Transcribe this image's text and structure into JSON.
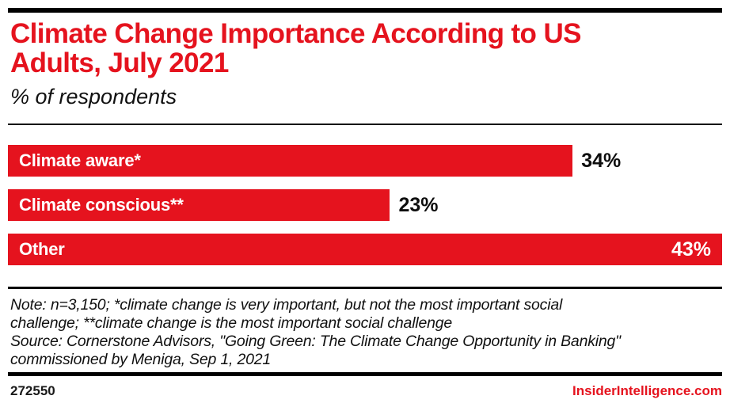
{
  "accent_color": "#E5131E",
  "header": {
    "title_line1": "Climate Change Importance According to US",
    "title_line2": "Adults, July 2021",
    "subtitle": "% of respondents"
  },
  "chart_data": {
    "type": "bar",
    "orientation": "horizontal",
    "title": "Climate Change Importance According to US Adults, July 2021",
    "subtitle": "% of respondents",
    "unit": "%",
    "categories": [
      "Climate aware*",
      "Climate conscious**",
      "Other"
    ],
    "values": [
      34,
      23,
      43
    ],
    "max_scale": 43,
    "bar_color": "#E5131E",
    "grid": "off",
    "bars": [
      {
        "label": "Climate aware*",
        "value": 34,
        "value_label": "34%",
        "value_inside": false
      },
      {
        "label": "Climate conscious**",
        "value": 23,
        "value_label": "23%",
        "value_inside": false
      },
      {
        "label": "Other",
        "value": 43,
        "value_label": "43%",
        "value_inside": true
      }
    ]
  },
  "note_lines": [
    "Note: n=3,150; *climate change is very important, but not the most important social",
    "challenge; **climate change is the most important social challenge",
    "Source: Cornerstone Advisors, \"Going Green: The Climate Change Opportunity in Banking\"",
    "commissioned by Meniga, Sep 1, 2021"
  ],
  "footer": {
    "chart_id": "272550",
    "brand": "InsiderIntelligence.com"
  }
}
